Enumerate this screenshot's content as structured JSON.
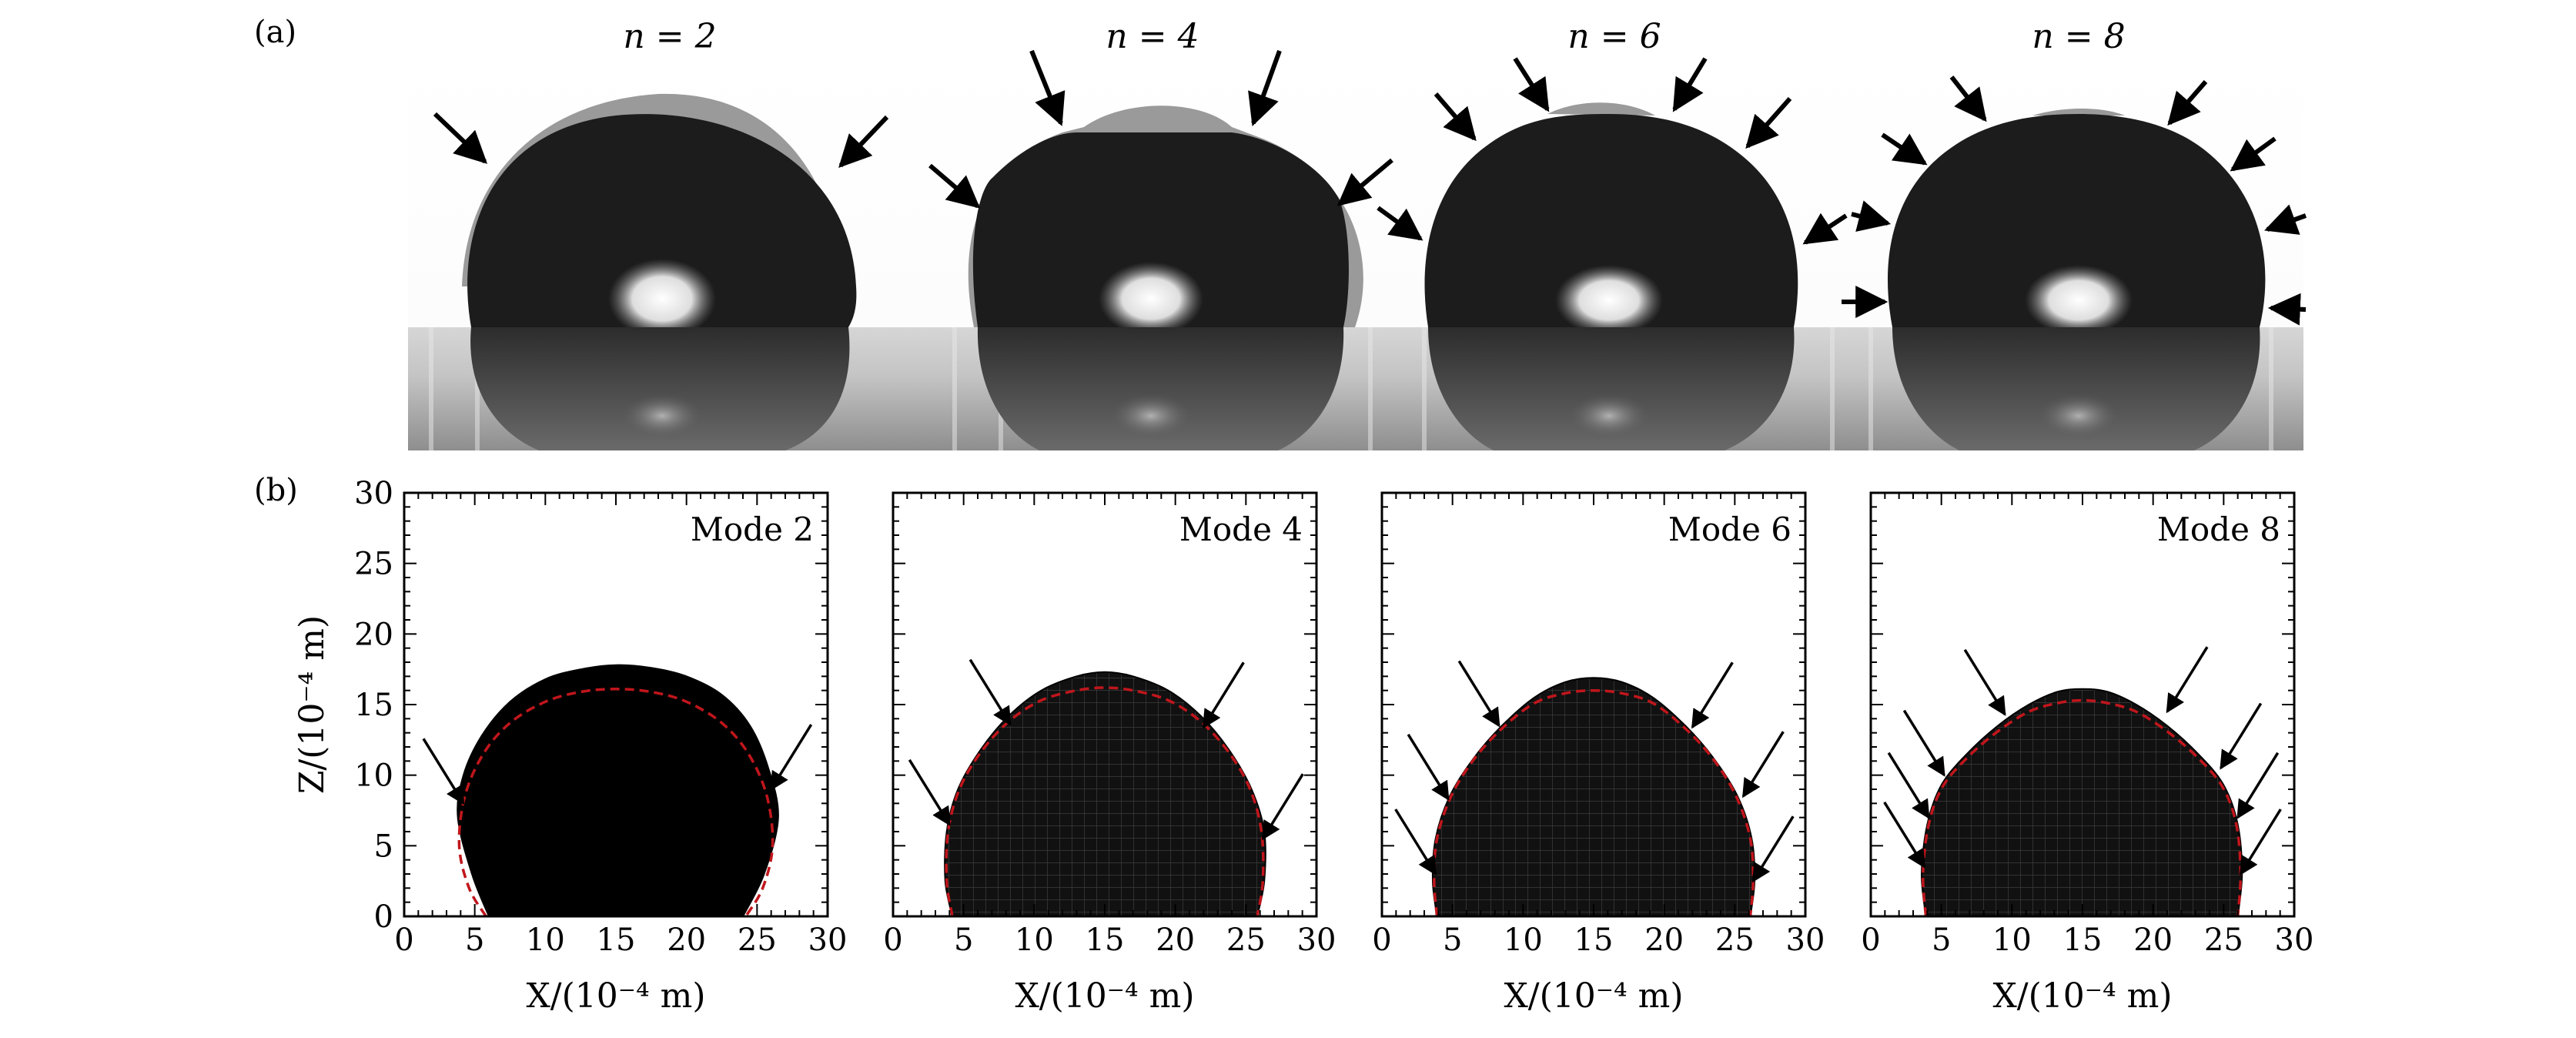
{
  "panel_a": {
    "label": "(a)",
    "photos": [
      {
        "n_label": "n = 2"
      },
      {
        "n_label": "n = 4"
      },
      {
        "n_label": "n = 6"
      },
      {
        "n_label": "n = 8"
      }
    ]
  },
  "panel_b": {
    "label": "(b)"
  },
  "chart_data": [
    {
      "type": "line",
      "title": "Mode 2",
      "xlabel": "X/(10⁻⁴ m)",
      "ylabel": "Z/(10⁻⁴ m)",
      "xlim": [
        0,
        30
      ],
      "ylim": [
        0,
        30
      ],
      "x_ticks": [
        0,
        5,
        10,
        15,
        20,
        25,
        30
      ],
      "y_ticks": [
        0,
        5,
        10,
        15,
        20,
        25,
        30
      ],
      "series": [
        {
          "x": [
            6,
            4.8,
            3.8,
            4.2,
            5.5,
            7.5,
            10,
            12.5,
            15,
            17.5,
            20,
            22.5,
            24.5,
            25.8,
            26.5,
            25.5,
            24
          ],
          "y": [
            0,
            3,
            7,
            10,
            12.8,
            15.2,
            16.8,
            17.5,
            17.8,
            17.6,
            17,
            15.7,
            13.5,
            10.5,
            7,
            3,
            0
          ]
        },
        {
          "x": [
            5.8,
            4.6,
            3.9,
            4.3,
            5.6,
            7.5,
            10,
            12.5,
            15,
            17.5,
            20,
            22.5,
            24.4,
            25.7,
            26.1,
            25.4,
            24.2
          ],
          "y": [
            0,
            2,
            5,
            8.5,
            11.5,
            13.7,
            15.2,
            15.9,
            16.1,
            15.9,
            15.2,
            13.7,
            11.5,
            8.5,
            5,
            2,
            0
          ]
        }
      ],
      "arrow_points": [
        [
          4.2,
          8
        ],
        [
          26,
          9
        ]
      ]
    },
    {
      "type": "line",
      "title": "Mode 4",
      "xlabel": "X/(10⁻⁴ m)",
      "ylabel": "Z/(10⁻⁴ m)",
      "xlim": [
        0,
        30
      ],
      "ylim": [
        0,
        30
      ],
      "x_ticks": [
        0,
        5,
        10,
        15,
        20,
        25,
        30
      ],
      "y_ticks": [
        0,
        5,
        10,
        15,
        20,
        25,
        30
      ],
      "series": [
        {
          "x": [
            4.2,
            3.7,
            3.8,
            4.6,
            6.2,
            8.2,
            10.5,
            13,
            15,
            17,
            19.5,
            21.8,
            23.8,
            25.4,
            26.3,
            26.3,
            25.8
          ],
          "y": [
            0,
            2.5,
            6,
            9,
            11.8,
            14.2,
            16,
            17,
            17.3,
            17,
            16,
            14.2,
            11.8,
            9,
            6,
            2.5,
            0
          ]
        },
        {
          "x": [
            4.2,
            3.8,
            3.9,
            4.7,
            6.2,
            8.2,
            10.5,
            13,
            15,
            17,
            19.5,
            21.8,
            23.8,
            25.3,
            26.1,
            26.2,
            25.8
          ],
          "y": [
            0,
            2.5,
            6,
            9,
            11.6,
            13.8,
            15.3,
            16,
            16.2,
            16,
            15.3,
            13.8,
            11.6,
            9,
            6,
            2.5,
            0
          ]
        }
      ],
      "arrow_points": [
        [
          4,
          6.5
        ],
        [
          8.3,
          13.6
        ],
        [
          22,
          13.4
        ],
        [
          26.2,
          5.5
        ]
      ]
    },
    {
      "type": "line",
      "title": "Mode 6",
      "xlabel": "X/(10⁻⁴ m)",
      "ylabel": "Z/(10⁻⁴ m)",
      "xlim": [
        0,
        30
      ],
      "ylim": [
        0,
        30
      ],
      "x_ticks": [
        0,
        5,
        10,
        15,
        20,
        25,
        30
      ],
      "y_ticks": [
        0,
        5,
        10,
        15,
        20,
        25,
        30
      ],
      "series": [
        {
          "x": [
            3.9,
            3.6,
            3.8,
            4.8,
            6.5,
            8.5,
            10.8,
            13,
            15,
            17,
            19.2,
            21.5,
            23.5,
            25.2,
            26.2,
            26.4,
            26.1
          ],
          "y": [
            0,
            2.5,
            5.5,
            8.5,
            11.2,
            13.5,
            15.5,
            16.6,
            16.9,
            16.6,
            15.5,
            13.5,
            11.2,
            8.5,
            5.5,
            2.5,
            0
          ]
        },
        {
          "x": [
            3.9,
            3.7,
            3.9,
            4.9,
            6.5,
            8.5,
            10.8,
            13,
            15,
            17,
            19.2,
            21.5,
            23.5,
            25.1,
            26.1,
            26.3,
            26.1
          ],
          "y": [
            0,
            2.5,
            5.5,
            8.5,
            11.1,
            13.3,
            15.1,
            15.8,
            16,
            15.8,
            15.1,
            13.3,
            11.1,
            8.5,
            5.5,
            2.5,
            0
          ]
        }
      ],
      "arrow_points": [
        [
          3.8,
          3
        ],
        [
          4.7,
          8.3
        ],
        [
          8.3,
          13.5
        ],
        [
          22,
          13.4
        ],
        [
          25.6,
          8.5
        ],
        [
          26.3,
          2.5
        ]
      ]
    },
    {
      "type": "line",
      "title": "Mode 8",
      "xlabel": "X/(10⁻⁴ m)",
      "ylabel": "Z/(10⁻⁴ m)",
      "xlim": [
        0,
        30
      ],
      "ylim": [
        0,
        30
      ],
      "x_ticks": [
        0,
        5,
        10,
        15,
        20,
        25,
        30
      ],
      "y_ticks": [
        0,
        5,
        10,
        15,
        20,
        25,
        30
      ],
      "series": [
        {
          "x": [
            3.9,
            3.6,
            4,
            5,
            6.8,
            9,
            11.2,
            13.2,
            15,
            16.8,
            18.8,
            21,
            23.2,
            25,
            26,
            26.3,
            26
          ],
          "y": [
            0,
            3,
            6.5,
            9.3,
            11.5,
            13.5,
            15,
            15.9,
            16.1,
            15.9,
            15,
            13.5,
            11.5,
            9.3,
            6.5,
            3,
            0
          ]
        },
        {
          "x": [
            3.9,
            3.7,
            4.1,
            5.1,
            6.9,
            9,
            11.2,
            13.2,
            15,
            16.8,
            18.8,
            21,
            23.1,
            24.9,
            25.9,
            26.2,
            26
          ],
          "y": [
            0,
            3,
            6.5,
            9.2,
            11.3,
            13.1,
            14.5,
            15.1,
            15.3,
            15.1,
            14.5,
            13.1,
            11.3,
            9.2,
            6.5,
            3,
            0
          ]
        }
      ],
      "arrow_points": [
        [
          3.8,
          3.5
        ],
        [
          4.1,
          7
        ],
        [
          5.2,
          10
        ],
        [
          9.5,
          14.3
        ],
        [
          21,
          14.5
        ],
        [
          24.8,
          10.5
        ],
        [
          26,
          7
        ],
        [
          26.2,
          3
        ]
      ]
    }
  ]
}
